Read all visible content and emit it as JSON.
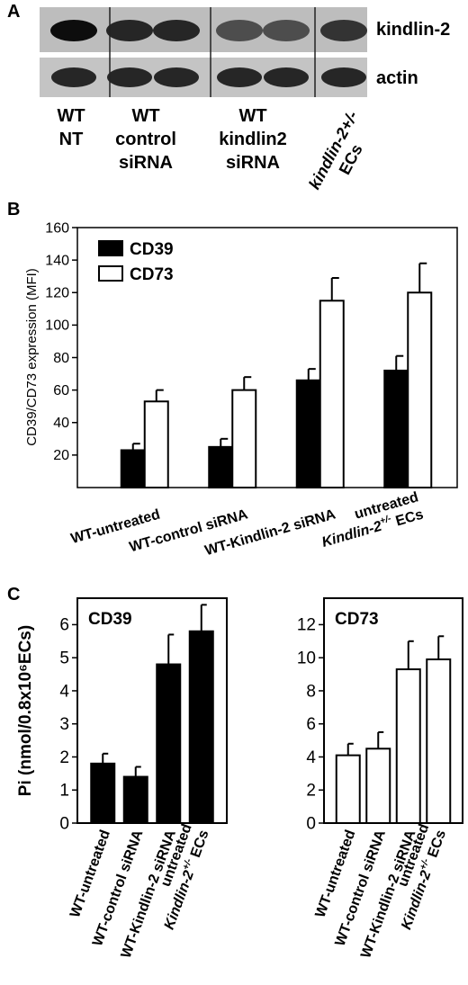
{
  "panel_a": {
    "letter": "A",
    "blot_labels": [
      "kindlin-2",
      "actin"
    ],
    "lanes": [
      {
        "lines": [
          "WT",
          "NT"
        ]
      },
      {
        "lines": [
          "WT",
          "control",
          "siRNA"
        ]
      },
      {
        "lines": [
          "WT",
          "kindlin2",
          "siRNA"
        ]
      },
      {
        "lines": [
          "kindlin-2+/-",
          "ECs"
        ]
      }
    ],
    "kindlin2_band_intensity": [
      0.95,
      0.85,
      0.85,
      0.7,
      0.7,
      0.8
    ],
    "actin_band_intensity": [
      0.85,
      0.85,
      0.85,
      0.85,
      0.85,
      0.85
    ]
  },
  "chart_data": [
    {
      "panel": "B",
      "type": "bar",
      "title": "",
      "xlabel": "",
      "ylabel": "CD39/CD73 expression (MFI)",
      "ylim": [
        0,
        160
      ],
      "yticks": [
        20,
        40,
        60,
        80,
        100,
        120,
        140,
        160
      ],
      "categories": [
        "WT-untreated",
        "WT-control siRNA",
        "WT-Kindlin-2 siRNA",
        "untreated Kindlin-2+/- ECs"
      ],
      "category_lines": [
        [
          "WT-untreated"
        ],
        [
          "WT-control siRNA"
        ],
        [
          "WT-Kindlin-2 siRNA"
        ],
        [
          "untreated",
          "Kindlin-2+/- ECs"
        ]
      ],
      "series": [
        {
          "name": "CD39",
          "color": "#000000",
          "values": [
            23,
            25,
            66,
            72
          ],
          "errors": [
            4,
            5,
            7,
            9
          ]
        },
        {
          "name": "CD73",
          "color": "#ffffff",
          "values": [
            53,
            60,
            115,
            120
          ],
          "errors": [
            7,
            8,
            14,
            18
          ]
        }
      ],
      "legend": "top-left"
    },
    {
      "panel": "C",
      "type": "bar",
      "title": "",
      "inset_label": "CD39",
      "ylabel": "Pi (nmol/0.8x10⁶ECs)",
      "ylim": [
        0,
        6.8
      ],
      "yticks": [
        0,
        1,
        2,
        3,
        4,
        5,
        6
      ],
      "categories": [
        "WT-untreated",
        "WT-control siRNA",
        "WT-Kindlin-2 siRNA",
        "untreated Kindlin-2+/- ECs"
      ],
      "category_lines": [
        [
          "WT-untreated"
        ],
        [
          "WT-control siRNA"
        ],
        [
          "WT-Kindlin-2 siRNA"
        ],
        [
          "untreated",
          "Kindlin-2+/- ECs"
        ]
      ],
      "series": [
        {
          "name": "CD39",
          "color": "#000000",
          "values": [
            1.8,
            1.4,
            4.8,
            5.8
          ],
          "errors": [
            0.3,
            0.3,
            0.9,
            0.8
          ]
        }
      ]
    },
    {
      "panel": "C",
      "type": "bar",
      "title": "",
      "inset_label": "CD73",
      "ylabel": "",
      "ylim": [
        0,
        13.6
      ],
      "yticks": [
        0,
        2,
        4,
        6,
        8,
        10,
        12
      ],
      "categories": [
        "WT-untreated",
        "WT-control siRNA",
        "WT-Kindlin-2 siRNA",
        "untreated Kindlin-2+/- ECs"
      ],
      "category_lines": [
        [
          "WT-untreated"
        ],
        [
          "WT-control siRNA"
        ],
        [
          "WT-Kindlin-2 siRNA"
        ],
        [
          "untreated",
          "Kindlin-2+/- ECs"
        ]
      ],
      "series": [
        {
          "name": "CD73",
          "color": "#ffffff",
          "values": [
            4.1,
            4.5,
            9.3,
            9.9
          ],
          "errors": [
            0.7,
            1.0,
            1.7,
            1.4
          ]
        }
      ]
    }
  ],
  "panel_b_letter": "B",
  "panel_c_letter": "C"
}
